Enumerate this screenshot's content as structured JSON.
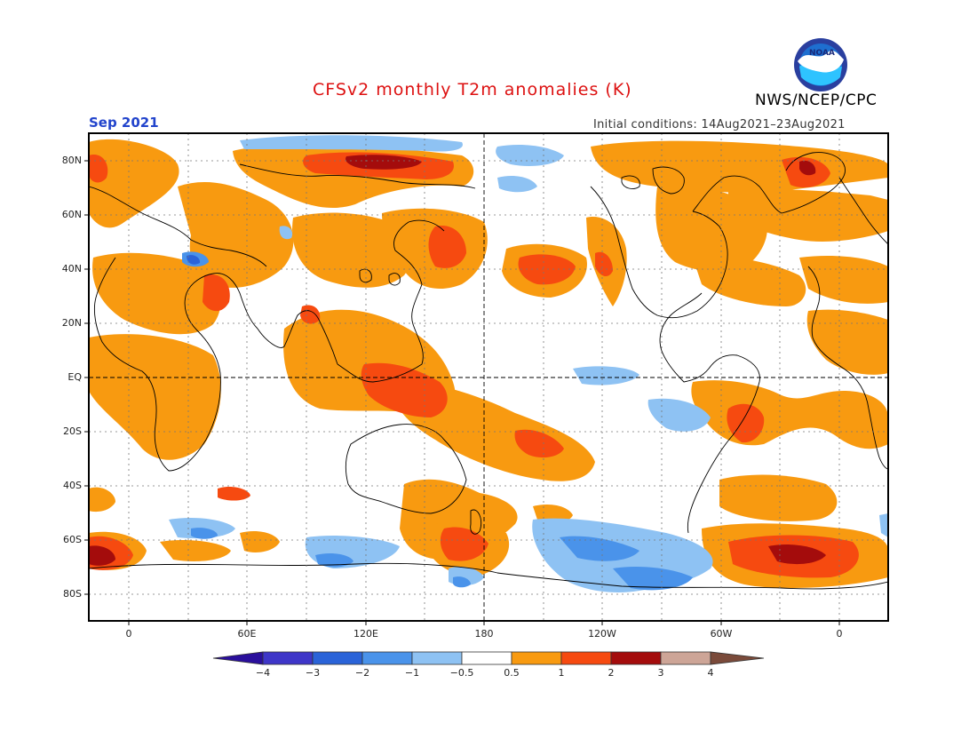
{
  "title": "CFSv2 monthly T2m anomalies (K)",
  "org": "NWS/NCEP/CPC",
  "logo_text": "NOAA",
  "month": "Sep 2021",
  "initial_conditions": "Initial conditions: 14Aug2021–23Aug2021",
  "lat_labels": [
    "80N",
    "60N",
    "40N",
    "20N",
    "EQ",
    "20S",
    "40S",
    "60S",
    "80S"
  ],
  "lat_values": [
    80,
    60,
    40,
    20,
    0,
    -20,
    -40,
    -60,
    -80
  ],
  "lon_labels": [
    "0",
    "60E",
    "120E",
    "180",
    "120W",
    "60W",
    "0"
  ],
  "lon_values": [
    0,
    60,
    120,
    180,
    240,
    300,
    360
  ],
  "colorbar": {
    "tick_labels": [
      "−4",
      "−3",
      "−2",
      "−1",
      "−0.5",
      "0.5",
      "1",
      "2",
      "3",
      "4"
    ],
    "bins": [
      {
        "from": "-inf",
        "to": -4,
        "color": "#2a0f9c"
      },
      {
        "from": -4,
        "to": -3,
        "color": "#3e36c8"
      },
      {
        "from": -3,
        "to": -2,
        "color": "#2a63d8"
      },
      {
        "from": -2,
        "to": -1,
        "color": "#4a93ea"
      },
      {
        "from": -1,
        "to": -0.5,
        "color": "#8ec2f3"
      },
      {
        "from": -0.5,
        "to": 0.5,
        "color": "#ffffff"
      },
      {
        "from": 0.5,
        "to": 1,
        "color": "#f89a10"
      },
      {
        "from": 1,
        "to": 2,
        "color": "#f64a10"
      },
      {
        "from": 2,
        "to": 3,
        "color": "#a40c0c"
      },
      {
        "from": 3,
        "to": 4,
        "color": "#cda597"
      },
      {
        "from": 4,
        "to": "inf",
        "color": "#7a4a3a"
      }
    ]
  },
  "colors": {
    "weak_warm": "#f89a10",
    "warm": "#f64a10",
    "hot": "#a40c0c",
    "weak_cool": "#8ec2f3",
    "cool": "#4a93ea",
    "cold": "#2a63d8",
    "title": "#dd1111",
    "month": "#2244cc"
  }
}
